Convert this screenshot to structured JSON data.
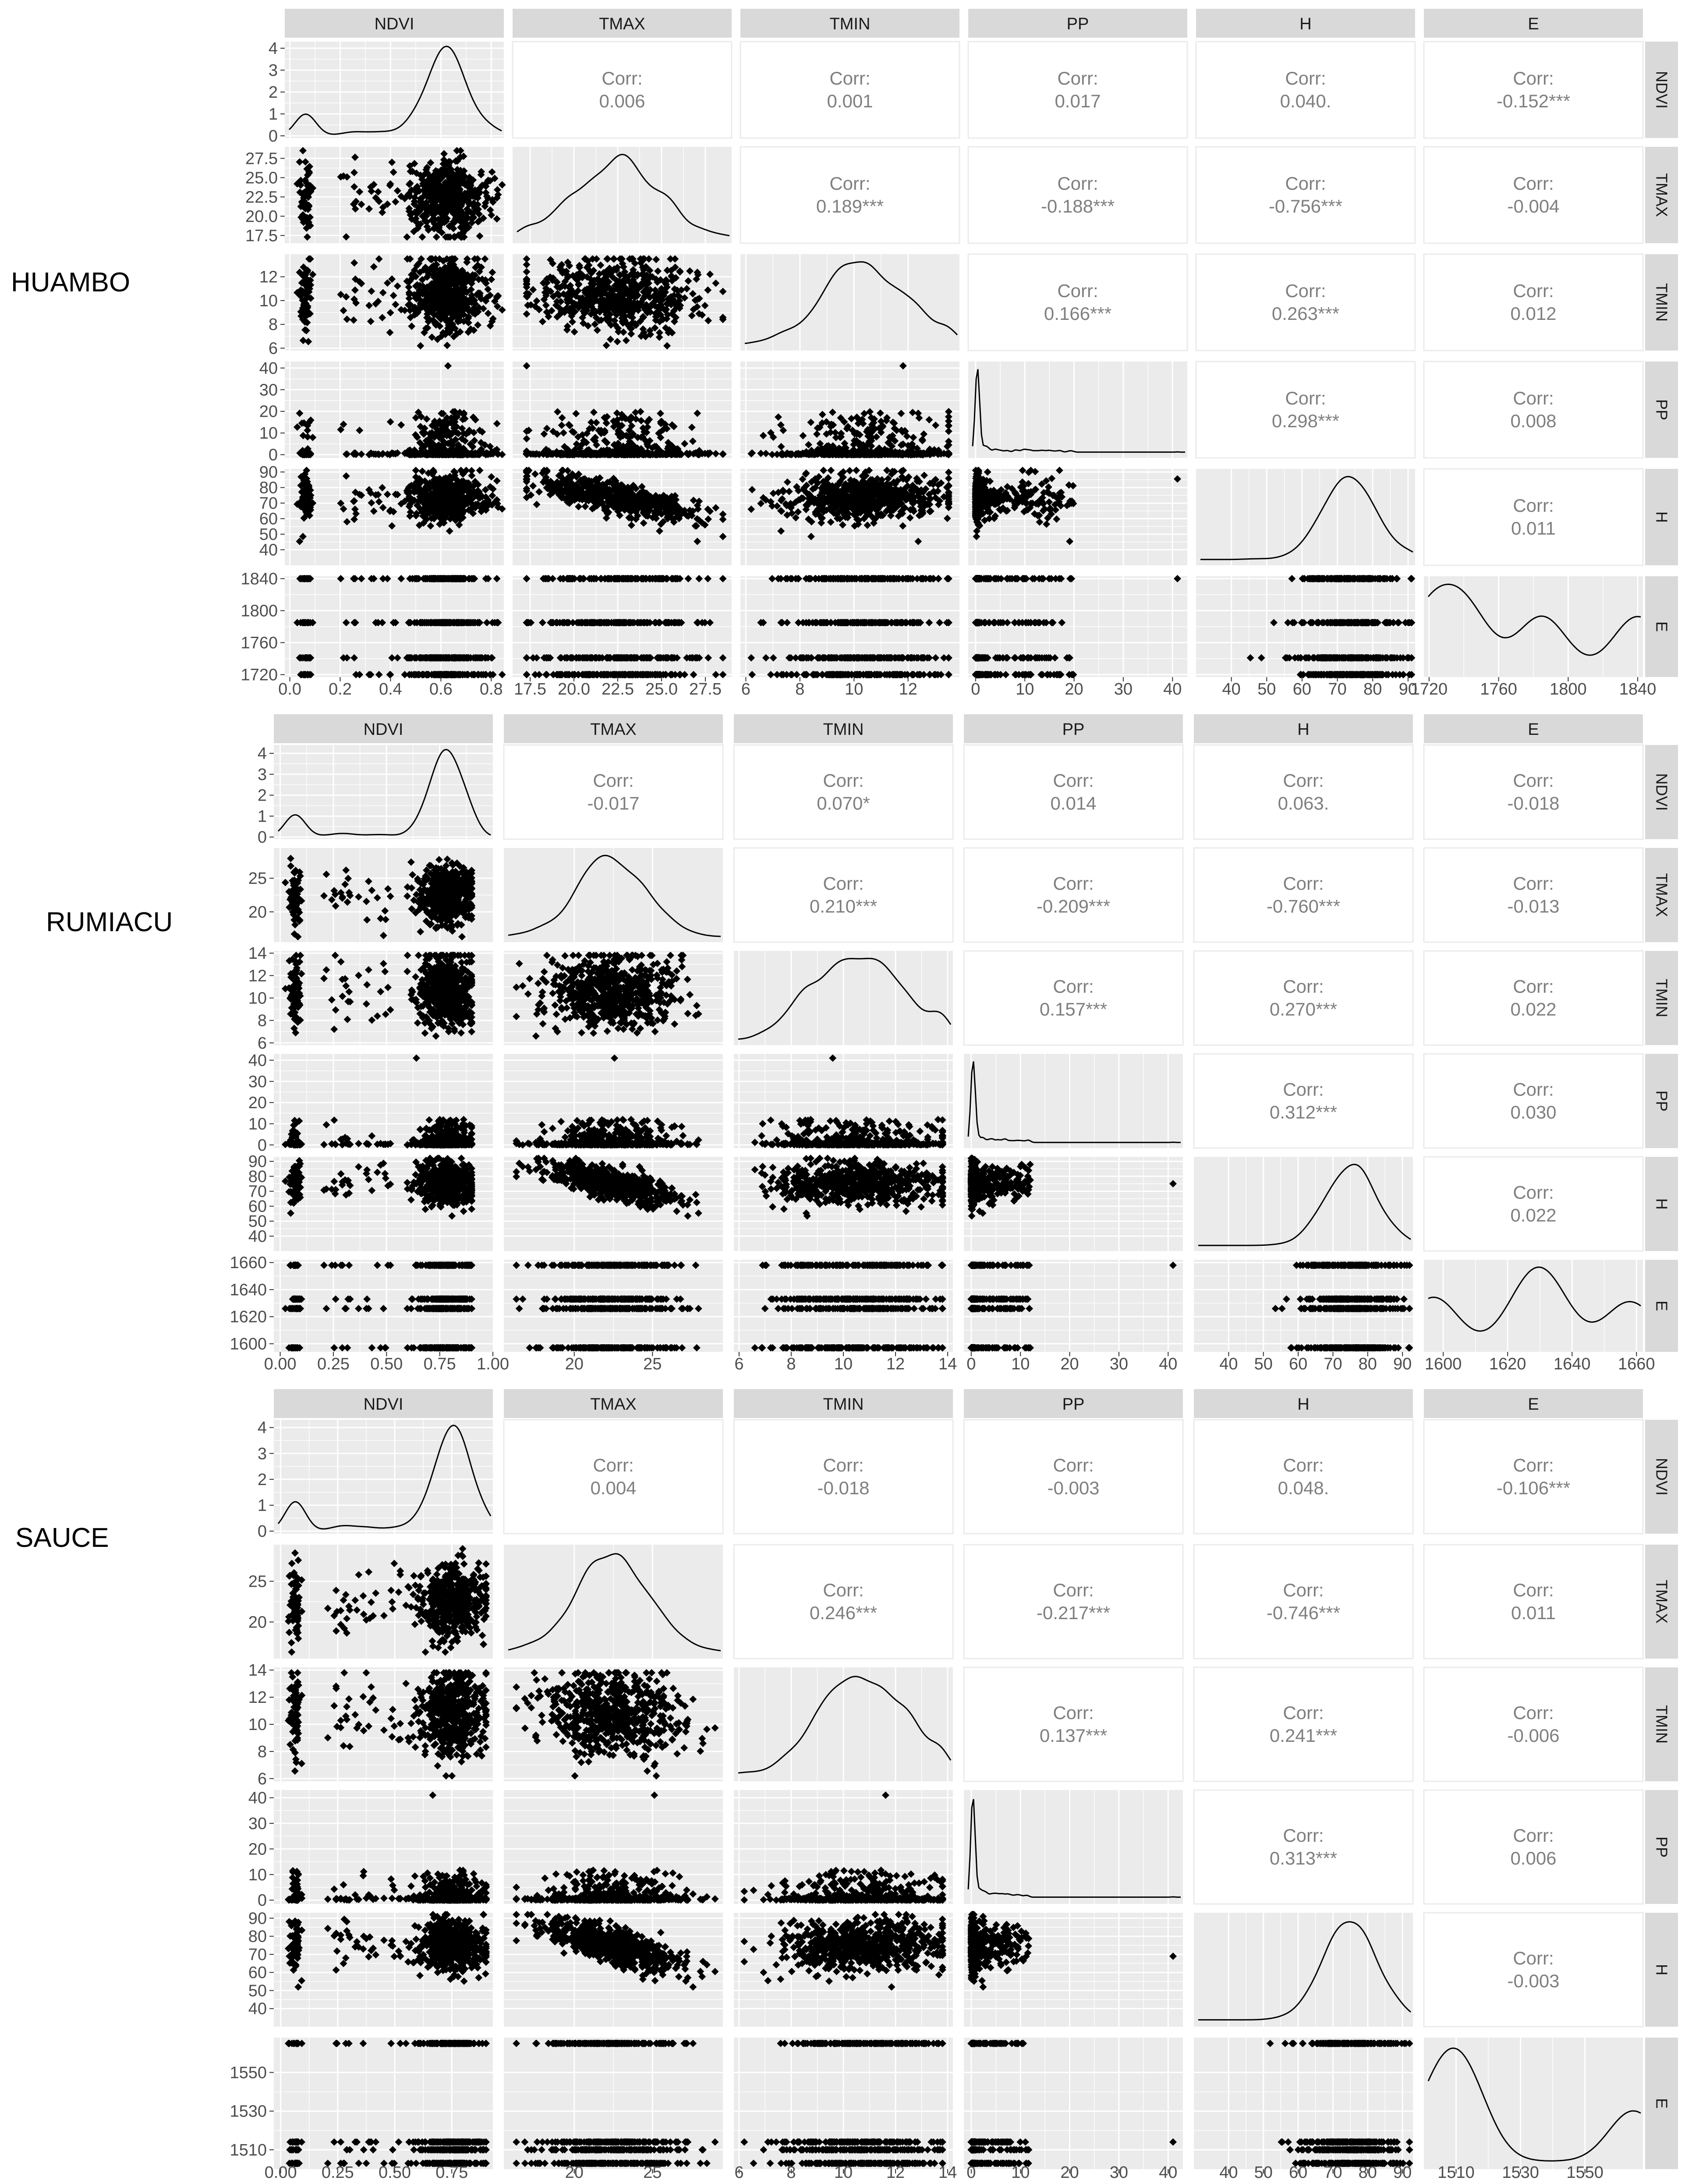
{
  "variables": [
    "NDVI",
    "TMAX",
    "TMIN",
    "PP",
    "H",
    "E"
  ],
  "strip_labels_right": [
    "NDVI",
    "TMAX",
    "TMIN",
    "PP",
    "H",
    "E"
  ],
  "corr_label": "Corr:",
  "colors": {
    "panel_bg": "#ebebeb",
    "grid": "#ffffff",
    "strip_bg": "#d9d9d9",
    "points": "#000000",
    "corr_text": "#7f7f7f",
    "axis_text": "#4d4d4d"
  },
  "chart_data": [
    {
      "type": "scatter-matrix",
      "site_label": "HUAMBO",
      "correlations": [
        [
          "0.006",
          "0.001",
          "0.017",
          "0.040.",
          "-0.152***"
        ],
        [
          "0.189***",
          "-0.188***",
          "-0.756***",
          "-0.004"
        ],
        [
          "0.166***",
          "0.263***",
          "0.012"
        ],
        [
          "0.298***",
          "0.008"
        ],
        [
          "0.011"
        ]
      ],
      "ranges": {
        "NDVI": [
          -0.02,
          0.85
        ],
        "TMAX": [
          16.5,
          29.0
        ],
        "TMIN": [
          5.8,
          13.9
        ],
        "PP": [
          -1.5,
          43
        ],
        "H": [
          30,
          92
        ],
        "E": [
          1717,
          1843
        ]
      },
      "ticks": {
        "NDVI": [
          "0.0",
          "0.2",
          "0.4",
          "0.6",
          "0.8"
        ],
        "TMAX": [
          "17.5",
          "20.0",
          "22.5",
          "25.0",
          "27.5"
        ],
        "TMIN": [
          "6",
          "8",
          "10",
          "12"
        ],
        "PP": [
          "0",
          "10",
          "20",
          "30",
          "40"
        ],
        "H": [
          "40",
          "50",
          "60",
          "70",
          "80",
          "90"
        ],
        "E": [
          "1720",
          "1760",
          "1800",
          "1840"
        ]
      },
      "y_ticks": {
        "NDVI": [
          "0",
          "1",
          "2",
          "3",
          "4"
        ],
        "TMAX": [
          "17.5",
          "20.0",
          "22.5",
          "25.0",
          "27.5"
        ],
        "TMIN": [
          "6",
          "8",
          "10",
          "12"
        ],
        "PP": [
          "0",
          "10",
          "20",
          "30",
          "40"
        ],
        "H": [
          "40",
          "50",
          "60",
          "70",
          "80",
          "90"
        ],
        "E": [
          "1720",
          "1760",
          "1800",
          "1840"
        ]
      },
      "density_ymax": 4.3,
      "e_levels": [
        1720,
        1741,
        1785,
        1840
      ],
      "ndvi_clusters": [
        [
          0.065,
          0.012,
          0.11
        ],
        [
          0.62,
          0.075,
          0.89
        ]
      ],
      "pp_cap": 20,
      "tmax_mean": 22.2,
      "tmax_sd": 2.3,
      "tmin_mean": 10.6,
      "tmin_sd": 1.6,
      "h_mean": 74,
      "h_sd": 8
    },
    {
      "type": "scatter-matrix",
      "site_label": "RUMIACU",
      "correlations": [
        [
          "-0.017",
          "0.070*",
          "0.014",
          "0.063.",
          "-0.018"
        ],
        [
          "0.210***",
          "-0.209***",
          "-0.760***",
          "-0.013"
        ],
        [
          "0.157***",
          "0.270***",
          "0.022"
        ],
        [
          "0.312***",
          "0.030"
        ],
        [
          "0.022"
        ]
      ],
      "ranges": {
        "NDVI": [
          -0.03,
          1.0
        ],
        "TMAX": [
          15.5,
          29.5
        ],
        "TMIN": [
          5.8,
          14.2
        ],
        "PP": [
          -1.5,
          43
        ],
        "H": [
          30,
          93
        ],
        "E": [
          1594,
          1662
        ]
      },
      "ticks": {
        "NDVI": [
          "0.00",
          "0.25",
          "0.50",
          "0.75",
          "1.00"
        ],
        "TMAX": [
          "20",
          "25"
        ],
        "TMIN": [
          "6",
          "8",
          "10",
          "12",
          "14"
        ],
        "PP": [
          "0",
          "10",
          "20",
          "30",
          "40"
        ],
        "H": [
          "40",
          "50",
          "60",
          "70",
          "80",
          "90"
        ],
        "E": [
          "1600",
          "1620",
          "1640",
          "1660"
        ]
      },
      "y_ticks": {
        "NDVI": [
          "0",
          "1",
          "2",
          "3",
          "4"
        ],
        "TMAX": [
          "20",
          "25"
        ],
        "TMIN": [
          "6",
          "8",
          "10",
          "12",
          "14"
        ],
        "PP": [
          "0",
          "10",
          "20",
          "30",
          "40"
        ],
        "H": [
          "40",
          "50",
          "60",
          "70",
          "80",
          "90"
        ],
        "E": [
          "1600",
          "1620",
          "1640",
          "1660"
        ]
      },
      "density_ymax": 4.4,
      "e_levels": [
        1597,
        1626,
        1633,
        1658
      ],
      "ndvi_clusters": [
        [
          0.07,
          0.014,
          0.1
        ],
        [
          0.78,
          0.07,
          0.9
        ]
      ],
      "pp_cap": 12,
      "tmax_mean": 22.3,
      "tmax_sd": 2.2,
      "tmin_mean": 10.6,
      "tmin_sd": 1.7,
      "h_mean": 75,
      "h_sd": 8
    },
    {
      "type": "scatter-matrix",
      "site_label": "SAUCE",
      "correlations": [
        [
          "0.004",
          "-0.018",
          "-0.003",
          "0.048.",
          "-0.106***"
        ],
        [
          "0.246***",
          "-0.217***",
          "-0.746***",
          "0.011"
        ],
        [
          "0.137***",
          "0.241***",
          "-0.006"
        ],
        [
          "0.313***",
          "0.006"
        ],
        [
          "-0.003"
        ]
      ],
      "ranges": {
        "NDVI": [
          -0.03,
          0.93
        ],
        "TMAX": [
          15.5,
          29.5
        ],
        "TMIN": [
          5.8,
          14.2
        ],
        "PP": [
          -1.5,
          43
        ],
        "H": [
          30,
          93
        ],
        "E": [
          1500,
          1568
        ]
      },
      "ticks": {
        "NDVI": [
          "0.00",
          "0.25",
          "0.50",
          "0.75"
        ],
        "TMAX": [
          "20",
          "25"
        ],
        "TMIN": [
          "6",
          "8",
          "10",
          "12",
          "14"
        ],
        "PP": [
          "0",
          "10",
          "20",
          "30",
          "40"
        ],
        "H": [
          "40",
          "50",
          "60",
          "70",
          "80",
          "90"
        ],
        "E": [
          "1510",
          "1530",
          "1550"
        ]
      },
      "y_ticks": {
        "NDVI": [
          "0",
          "1",
          "2",
          "3",
          "4"
        ],
        "TMAX": [
          "20",
          "25"
        ],
        "TMIN": [
          "6",
          "8",
          "10",
          "12",
          "14"
        ],
        "PP": [
          "0",
          "10",
          "20",
          "30",
          "40"
        ],
        "H": [
          "40",
          "50",
          "60",
          "70",
          "80",
          "90"
        ],
        "E": [
          "1510",
          "1530",
          "1550"
        ]
      },
      "density_ymax": 4.3,
      "e_levels": [
        1503,
        1510,
        1514,
        1565
      ],
      "ndvi_clusters": [
        [
          0.065,
          0.014,
          0.1
        ],
        [
          0.75,
          0.075,
          0.9
        ]
      ],
      "pp_cap": 12,
      "tmax_mean": 22.4,
      "tmax_sd": 2.3,
      "tmin_mean": 10.8,
      "tmin_sd": 1.6,
      "h_mean": 75,
      "h_sd": 8
    }
  ]
}
